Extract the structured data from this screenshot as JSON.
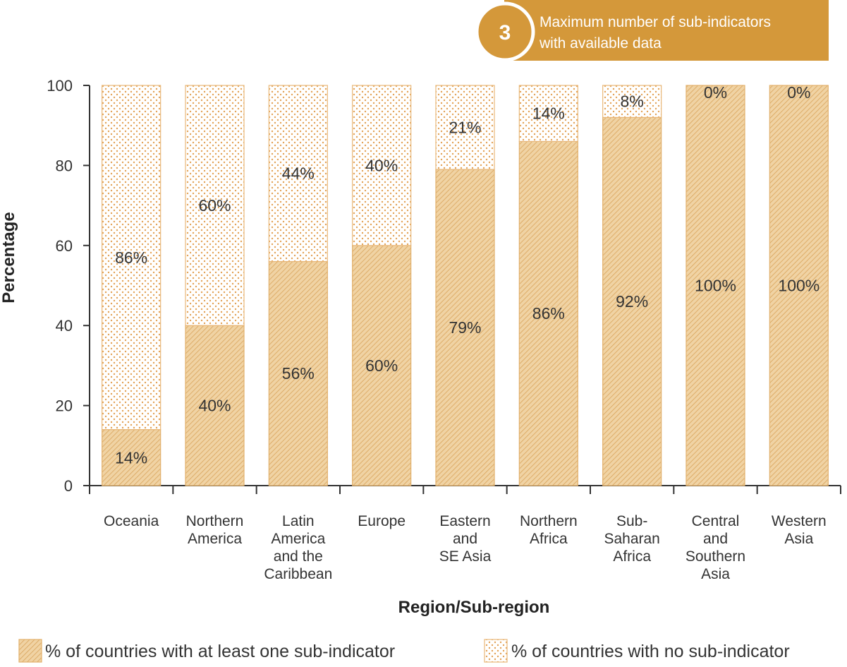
{
  "badge": {
    "number": "3",
    "line1": "Maximum number of sub-indicators",
    "line2": "with available data",
    "color": "#d4983a"
  },
  "colors": {
    "accent": "#d4983a",
    "hatch_fill": "#f0d3a4",
    "dots": "#e3a256",
    "axis": "#333333"
  },
  "chart_data": {
    "type": "bar",
    "stacked": true,
    "categories": [
      [
        "Oceania"
      ],
      [
        "Northern",
        "America"
      ],
      [
        "Latin",
        "America",
        "and the",
        "Caribbean"
      ],
      [
        "Europe"
      ],
      [
        "Eastern",
        "and",
        "SE Asia"
      ],
      [
        "Northern",
        "Africa"
      ],
      [
        "Sub-",
        "Saharan",
        "Africa"
      ],
      [
        "Central",
        "and",
        "Southern",
        "Asia"
      ],
      [
        "Western",
        "Asia"
      ]
    ],
    "series": [
      {
        "name": "% of countries with at least one sub-indicator",
        "pattern": "hatch",
        "values": [
          14,
          40,
          56,
          60,
          79,
          86,
          92,
          100,
          100
        ],
        "labels": [
          "14%",
          "40%",
          "56%",
          "60%",
          "79%",
          "86%",
          "92%",
          "100%",
          "100%"
        ]
      },
      {
        "name": "% of countries with no sub-indicator",
        "pattern": "dots",
        "values": [
          86,
          60,
          44,
          40,
          21,
          14,
          8,
          0,
          0
        ],
        "labels": [
          "86%",
          "60%",
          "44%",
          "40%",
          "21%",
          "14%",
          "8%",
          "0%",
          "0%"
        ]
      }
    ],
    "xlabel": "Region/Sub-region",
    "ylabel": "Percentage",
    "ylim": [
      0,
      100
    ],
    "yticks": [
      0,
      20,
      40,
      60,
      80,
      100
    ],
    "grid": false,
    "legend_position": "bottom"
  }
}
